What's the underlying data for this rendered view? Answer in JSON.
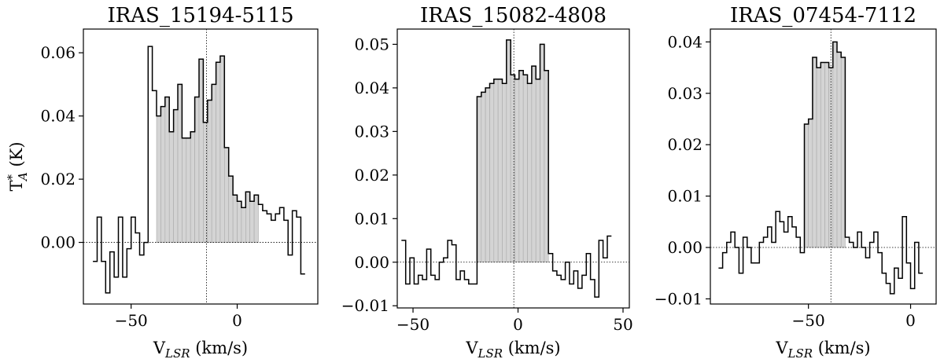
{
  "chart_data": [
    {
      "type": "bar",
      "title": "IRAS_15194-5115",
      "xlabel_main": "V",
      "xlabel_sub": "LSR",
      "xlabel_unit": " (km/s)",
      "ylabel_main": "T",
      "ylabel_sup": "*",
      "ylabel_sub": "A",
      "ylabel_unit": " (K)",
      "xlim": [
        -72.5,
        38
      ],
      "ylim": [
        -0.0195,
        0.0675
      ],
      "xticks": [
        -50,
        0
      ],
      "xtick_labels": [
        "−50",
        "0"
      ],
      "yticks": [
        0.0,
        0.02,
        0.04,
        0.06
      ],
      "ytick_labels": [
        "0.00",
        "0.02",
        "0.04",
        "0.06"
      ],
      "vline": -14.5,
      "fill_range": [
        -38,
        10
      ],
      "x_start": -68,
      "bin_width": 2,
      "values": [
        -0.006,
        0.008,
        -0.006,
        -0.016,
        -0.003,
        -0.011,
        0.008,
        -0.011,
        -0.002,
        0.008,
        0.003,
        -0.004,
        0.0,
        0.062,
        0.048,
        0.04,
        0.043,
        0.046,
        0.035,
        0.042,
        0.05,
        0.033,
        0.033,
        0.035,
        0.046,
        0.058,
        0.038,
        0.045,
        0.05,
        0.057,
        0.059,
        0.03,
        0.021,
        0.015,
        0.013,
        0.011,
        0.016,
        0.013,
        0.015,
        0.012,
        0.01,
        0.009,
        0.007,
        0.009,
        0.011,
        0.007,
        -0.004,
        0.01,
        0.008,
        -0.01
      ]
    },
    {
      "type": "bar",
      "title": "IRAS_15082-4808",
      "xlabel_main": "V",
      "xlabel_sub": "LSR",
      "xlabel_unit": " (km/s)",
      "xlim": [
        -57.5,
        53
      ],
      "ylim": [
        -0.0105,
        0.0535
      ],
      "xticks": [
        -50,
        0,
        50
      ],
      "xtick_labels": [
        "−50",
        "0",
        "50"
      ],
      "yticks": [
        -0.01,
        0.0,
        0.01,
        0.02,
        0.03,
        0.04,
        0.05
      ],
      "ytick_labels": [
        "−0.01",
        "0.00",
        "0.01",
        "0.02",
        "0.03",
        "0.04",
        "0.05"
      ],
      "vline": -2,
      "fill_range": [
        -19.5,
        15.5
      ],
      "x_start": -55.5,
      "bin_width": 2,
      "values": [
        0.005,
        -0.005,
        0.001,
        -0.005,
        -0.003,
        -0.004,
        0.003,
        -0.003,
        -0.004,
        0.0,
        0.001,
        0.005,
        0.004,
        -0.004,
        -0.002,
        -0.004,
        -0.005,
        -0.005,
        0.038,
        0.039,
        0.04,
        0.041,
        0.042,
        0.042,
        0.041,
        0.051,
        0.043,
        0.042,
        0.044,
        0.043,
        0.041,
        0.045,
        0.042,
        0.05,
        0.044,
        0.002,
        -0.002,
        -0.003,
        -0.004,
        0.0,
        -0.005,
        -0.002,
        -0.006,
        -0.003,
        0.002,
        -0.004,
        -0.008,
        0.005,
        0.001,
        0.006
      ]
    },
    {
      "type": "bar",
      "title": "IRAS_07454-7112",
      "xlabel_main": "V",
      "xlabel_sub": "LSR",
      "xlabel_unit": " (km/s)",
      "xlim": [
        -98,
        12.5
      ],
      "ylim": [
        -0.011,
        0.0425
      ],
      "xticks": [
        -50,
        0
      ],
      "xtick_labels": [
        "−50",
        "0"
      ],
      "yticks": [
        -0.01,
        0.0,
        0.01,
        0.02,
        0.03,
        0.04
      ],
      "ytick_labels": [
        "−0.01",
        "0.00",
        "0.01",
        "0.02",
        "0.03",
        "0.04"
      ],
      "vline": -39,
      "fill_range": [
        -53,
        -31
      ],
      "x_start": -94,
      "bin_width": 2,
      "values": [
        -0.004,
        -0.001,
        0.001,
        0.003,
        0.0,
        -0.005,
        0.002,
        0.0,
        -0.003,
        -0.003,
        0.001,
        0.002,
        0.004,
        0.001,
        0.007,
        0.005,
        0.003,
        0.006,
        0.004,
        0.002,
        -0.001,
        0.024,
        0.025,
        0.037,
        0.035,
        0.036,
        0.036,
        0.035,
        0.04,
        0.038,
        0.037,
        0.002,
        0.001,
        0.0,
        0.003,
        0.0,
        -0.002,
        0.001,
        0.003,
        -0.001,
        -0.005,
        -0.007,
        -0.009,
        -0.004,
        -0.006,
        0.006,
        -0.003,
        -0.008,
        0.001,
        -0.005
      ]
    }
  ],
  "axes_style": {
    "frame_color": "#000000",
    "fill_color": "#d4d4d4",
    "line_color": "#000000"
  }
}
